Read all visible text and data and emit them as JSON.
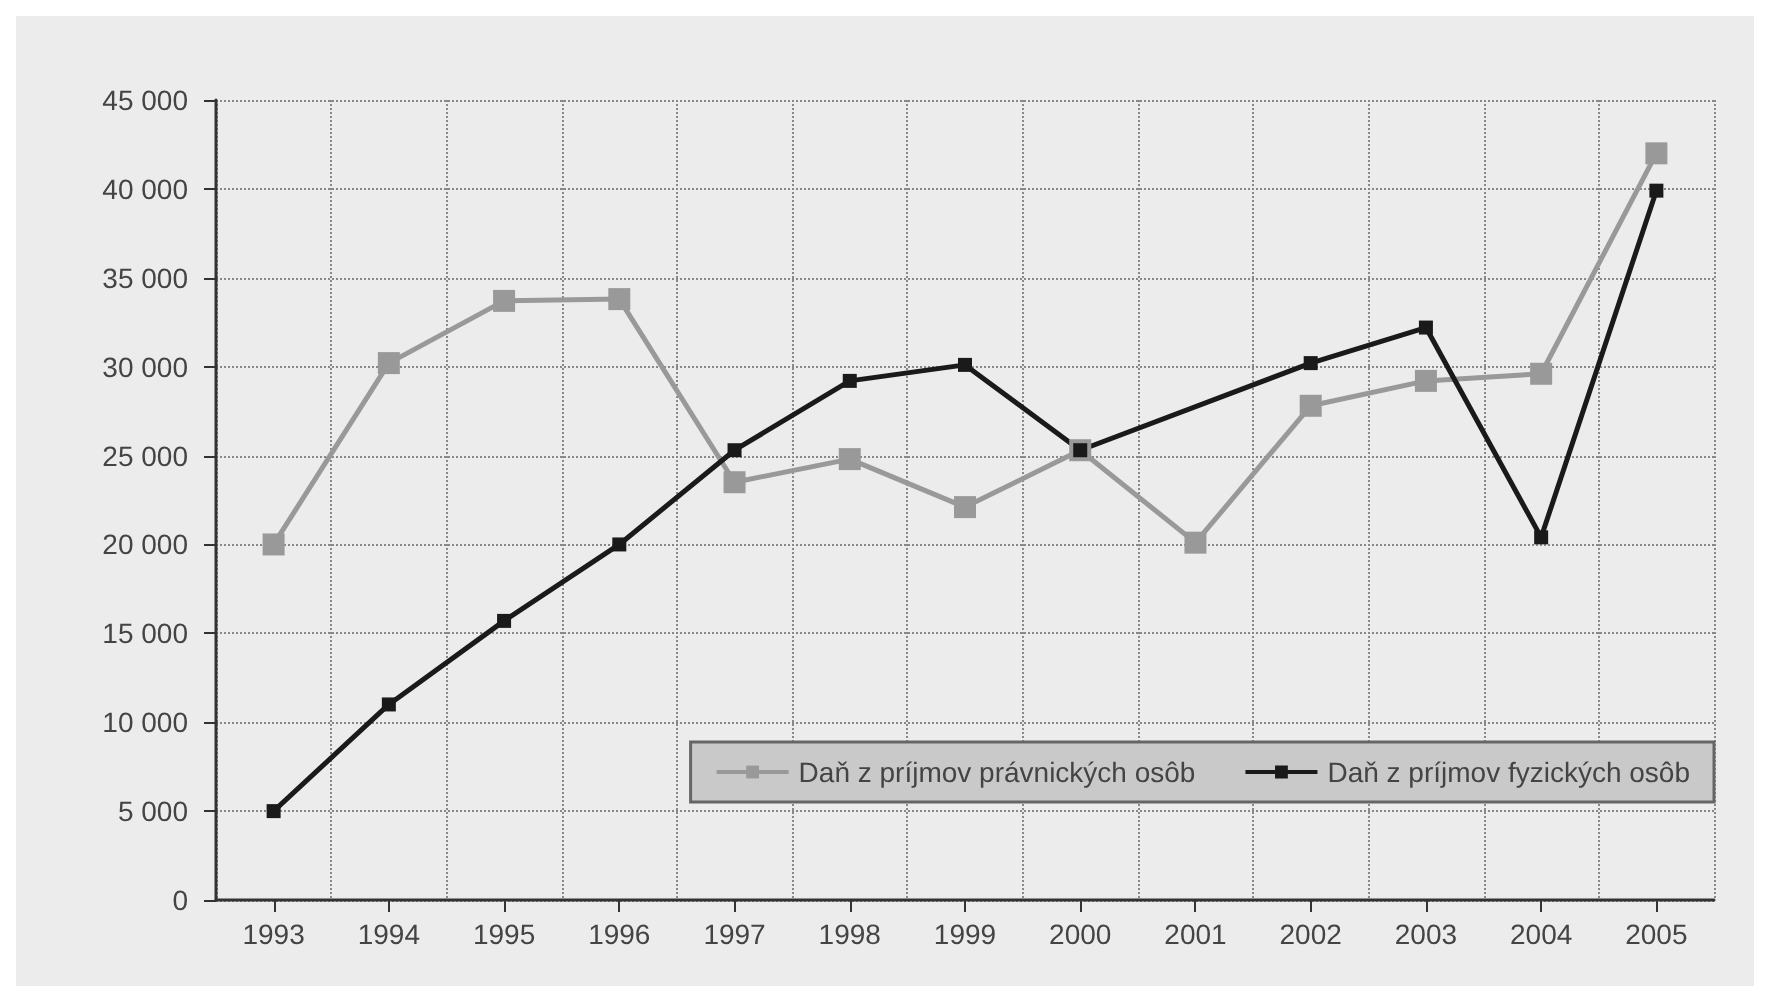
{
  "chart_data": {
    "type": "line",
    "categories": [
      "1993",
      "1994",
      "1995",
      "1996",
      "1997",
      "1998",
      "1999",
      "2000",
      "2001",
      "2002",
      "2003",
      "2004",
      "2005"
    ],
    "series": [
      {
        "name": "Daň z príjmov právnických osôb",
        "color": "#999999",
        "values": [
          20000,
          30200,
          33700,
          33800,
          23500,
          24800,
          22100,
          25300,
          20100,
          27800,
          29200,
          29600,
          42000
        ]
      },
      {
        "name": "Daň z príjmov fyzických osôb",
        "color": "#1a1a1a",
        "values": [
          5000,
          11000,
          15700,
          20000,
          25300,
          29200,
          30100,
          25300,
          null,
          30200,
          32200,
          20400,
          39900
        ]
      }
    ],
    "ylim": [
      0,
      45000
    ],
    "yticks": [
      {
        "value": 0,
        "label": "0"
      },
      {
        "value": 5000,
        "label": "5 000"
      },
      {
        "value": 10000,
        "label": "10 000"
      },
      {
        "value": 15000,
        "label": "15 000"
      },
      {
        "value": 20000,
        "label": "20 000"
      },
      {
        "value": 25000,
        "label": "25 000"
      },
      {
        "value": 30000,
        "label": "30 000"
      },
      {
        "value": 35000,
        "label": "35 000"
      },
      {
        "value": 40000,
        "label": "40 000"
      },
      {
        "value": 45000,
        "label": "45 000"
      }
    ],
    "grid": true,
    "legend": "bottom right",
    "marker": "square",
    "line_style": "solid"
  }
}
